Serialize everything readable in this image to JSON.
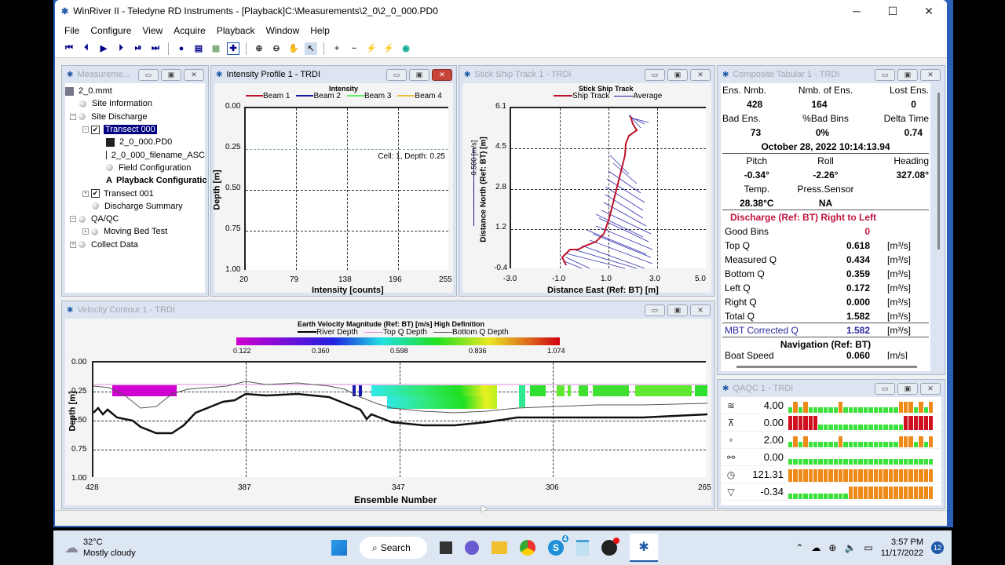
{
  "window": {
    "title": "WinRiver II - Teledyne RD Instruments - [Playback]C:\\Measurements\\2_0\\2_0_000.PD0",
    "minimize": "─",
    "maximize": "☐",
    "close": "✕"
  },
  "menu": [
    "File",
    "Configure",
    "View",
    "Acquire",
    "Playback",
    "Window",
    "Help"
  ],
  "toolbar": {
    "icons": [
      "first-ensemble",
      "previous-ensemble",
      "play",
      "next-ensemble",
      "step-forward",
      "last-ensemble",
      "sep",
      "marker",
      "properties",
      "auto-scale",
      "fit",
      "sep",
      "zoom-in",
      "zoom-out",
      "pan",
      "select-pointer",
      "sep",
      "add-point",
      "remove-point",
      "lightning-green",
      "lightning-red",
      "globe"
    ]
  },
  "measurement": {
    "title": "Measureme...",
    "tree": [
      {
        "label": "2_0.mmt",
        "level": 0,
        "icon": "mmt-file"
      },
      {
        "label": "Site Information",
        "level": 1,
        "icon": "ball"
      },
      {
        "label": "Site Discharge",
        "level": 1,
        "icon": "ball",
        "expander": "-"
      },
      {
        "label": "Transect 000",
        "level": 2,
        "icon": "checkbox",
        "checked": true,
        "selected": true,
        "expander": "-"
      },
      {
        "label": "2_0_000.PD0",
        "level": 3,
        "icon": "disk"
      },
      {
        "label": "2_0_000_filename_ASC",
        "level": 3,
        "icon": "disk"
      },
      {
        "label": "Field Configuration",
        "level": 3,
        "icon": "ball"
      },
      {
        "label": "Playback Configuratic",
        "level": 3,
        "icon": "config",
        "bold": true
      },
      {
        "label": "Transect 001",
        "level": 2,
        "icon": "checkbox",
        "checked": true,
        "expander": "+"
      },
      {
        "label": "Discharge Summary",
        "level": 2,
        "icon": "ball"
      },
      {
        "label": "QA/QC",
        "level": 1,
        "icon": "ball",
        "expander": "-"
      },
      {
        "label": "Moving Bed Test",
        "level": 2,
        "icon": "ball",
        "expander": "+"
      },
      {
        "label": "Collect Data",
        "level": 1,
        "icon": "ball",
        "expander": "+"
      }
    ]
  },
  "intensity": {
    "title": "Intensity Profile 1 - TRDI",
    "chart_title": "Intensity",
    "legend": [
      {
        "name": "Beam 1",
        "color": "#c0102a"
      },
      {
        "name": "Beam 2",
        "color": "#1a1a9a"
      },
      {
        "name": "Beam 3",
        "color": "#66ee66"
      },
      {
        "name": "Beam 4",
        "color": "#e8c040"
      }
    ],
    "y_ticks": [
      "0.00",
      "0.25",
      "0.50",
      "0.75",
      "1.00"
    ],
    "x_ticks": [
      "20",
      "79",
      "138",
      "196",
      "255"
    ],
    "ylabel": "Depth [m]",
    "xlabel": "Intensity [counts]",
    "annotation": "Cell: 1, Depth: 0.25"
  },
  "shiptrack": {
    "title": "Stick Ship Track 1 - TRDI",
    "chart_title": "Stick Ship Track",
    "legend": [
      {
        "name": "Ship Track",
        "color": "#c0102a"
      },
      {
        "name": "Average",
        "color": "#1a1a9a"
      }
    ],
    "y_ticks": [
      "6.1",
      "4.5",
      "2.8",
      "1.2",
      "-0.4"
    ],
    "x_ticks": [
      "-3.0",
      "-1.0",
      "1.0",
      "3.0",
      "5.0"
    ],
    "ylabel": "Distance North (Ref: BT) [m]",
    "xlabel": "Distance East (Ref: BT) [m]",
    "scale_label": "0.500 [m/s]"
  },
  "tabular": {
    "title": "Composite Tabular 1 - TRDI",
    "row1_labels": [
      "Ens. Nmb.",
      "Nmb. of Ens.",
      "Lost Ens."
    ],
    "row1_values": [
      "428",
      "164",
      "0"
    ],
    "row2_labels": [
      "Bad Ens.",
      "%Bad Bins",
      "Delta Time"
    ],
    "row2_values": [
      "73",
      "0%",
      "0.74"
    ],
    "datetime": "October 28, 2022  10:14:13.94",
    "row3_labels": [
      "Pitch",
      "Roll",
      "Heading"
    ],
    "row3_values": [
      "-0.34°",
      "-2.26°",
      "327.08°"
    ],
    "row4_labels": [
      "Temp.",
      "Press.Sensor",
      ""
    ],
    "row4_values": [
      "28.38°C",
      "NA",
      ""
    ],
    "discharge_header": "Discharge (Ref: BT) Right to Left",
    "good_bins_label": "Good Bins",
    "good_bins_value": "0",
    "q_rows": [
      {
        "label": "Top Q",
        "value": "0.618",
        "unit": "[m³/s]"
      },
      {
        "label": "Measured Q",
        "value": "0.434",
        "unit": "[m³/s]"
      },
      {
        "label": "Bottom Q",
        "value": "0.359",
        "unit": "[m³/s]"
      },
      {
        "label": "Left Q",
        "value": "0.172",
        "unit": "[m³/s]"
      },
      {
        "label": "Right Q",
        "value": "0.000",
        "unit": "[m³/s]"
      },
      {
        "label": "Total Q",
        "value": "1.582",
        "unit": "[m³/s]"
      }
    ],
    "mbt": {
      "label": "MBT Corrected Q",
      "value": "1.582",
      "unit": "[m³/s]"
    },
    "nav_header": "Navigation (Ref: BT)",
    "partial": {
      "label": "Boat Speed",
      "value": "0.060",
      "unit": "[m/s]"
    }
  },
  "qaqc": {
    "title": "QAQC 1 - TRDI",
    "rows": [
      {
        "icon": "bottom-track-icon",
        "value": "4.00"
      },
      {
        "icon": "depth-icon",
        "value": "0.00"
      },
      {
        "icon": "water-track-icon",
        "value": "2.00"
      },
      {
        "icon": "heading-icon",
        "value": "0.00"
      },
      {
        "icon": "clock-icon",
        "value": "121.31"
      },
      {
        "icon": "pitch-icon",
        "value": "-0.34"
      }
    ],
    "colors": {
      "green": "#3ce23c",
      "orange": "#ee8a1a",
      "red": "#d01020"
    }
  },
  "contour": {
    "title": "Velocity Contour 1 - TRDI",
    "chart_title": "Earth Velocity Magnitude (Ref: BT) [m/s] High Definition",
    "legend": [
      {
        "name": "River Depth",
        "color": "#000"
      },
      {
        "name": "Top Q Depth",
        "color": "#e088e0"
      },
      {
        "name": "Bottom Q Depth",
        "color": "#555"
      }
    ],
    "colorbar_ticks": [
      "0.122",
      "0.360",
      "0.598",
      "0.836",
      "1.074"
    ],
    "y_ticks": [
      "0.00",
      "0.25",
      "0.50",
      "0.75",
      "1.00"
    ],
    "x_ticks": [
      "428",
      "387",
      "347",
      "306",
      "265"
    ],
    "ylabel": "Depth [m]",
    "xlabel": "Ensemble Number"
  },
  "taskbar": {
    "weather_temp": "32°C",
    "weather_desc": "Mostly cloudy",
    "search": "Search",
    "time": "3:57 PM",
    "date": "11/17/2022",
    "notif_count": "12",
    "skype_badge": "4"
  }
}
